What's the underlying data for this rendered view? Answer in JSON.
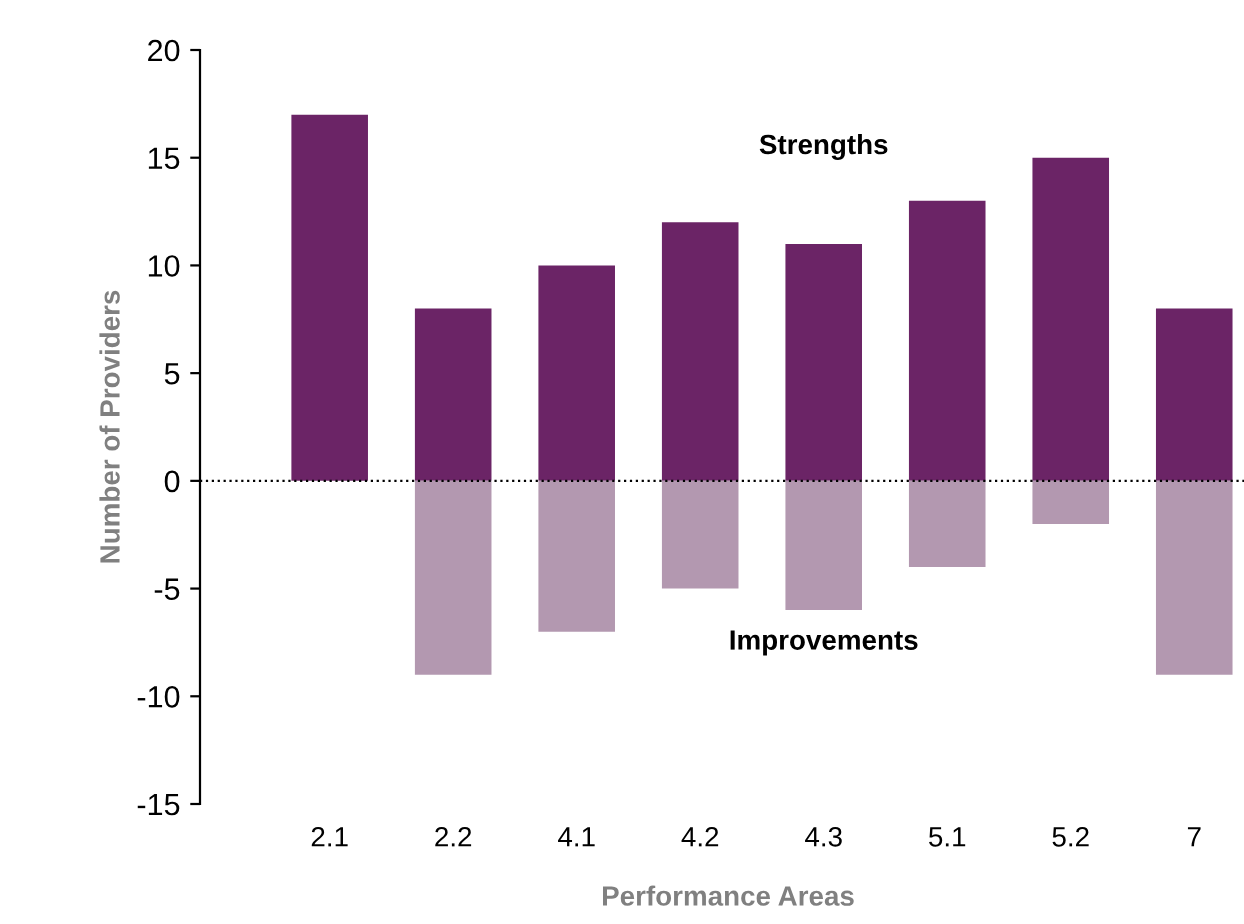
{
  "chart_data": {
    "type": "bar",
    "xlabel": "Performance Areas",
    "ylabel": "Number of Providers",
    "categories": [
      "2.1",
      "2.2",
      "4.1",
      "4.2",
      "4.3",
      "5.1",
      "5.2",
      "7"
    ],
    "series": [
      {
        "name": "Strengths",
        "color": "#6b2466",
        "values": [
          17,
          8,
          10,
          12,
          11,
          13,
          15,
          8
        ]
      },
      {
        "name": "Improvements",
        "color": "#b398b0",
        "values": [
          null,
          -9,
          -7,
          -5,
          -6,
          -4,
          -2,
          -9
        ]
      }
    ],
    "ylim": [
      -15,
      20
    ],
    "yticks": [
      -15,
      -10,
      -5,
      0,
      5,
      10,
      15,
      20
    ],
    "stacked": true,
    "grid": false,
    "legend": false,
    "ref_lines": [
      {
        "axis": "y",
        "value": 0,
        "color": "#000000",
        "line_style": "dotted"
      }
    ]
  }
}
